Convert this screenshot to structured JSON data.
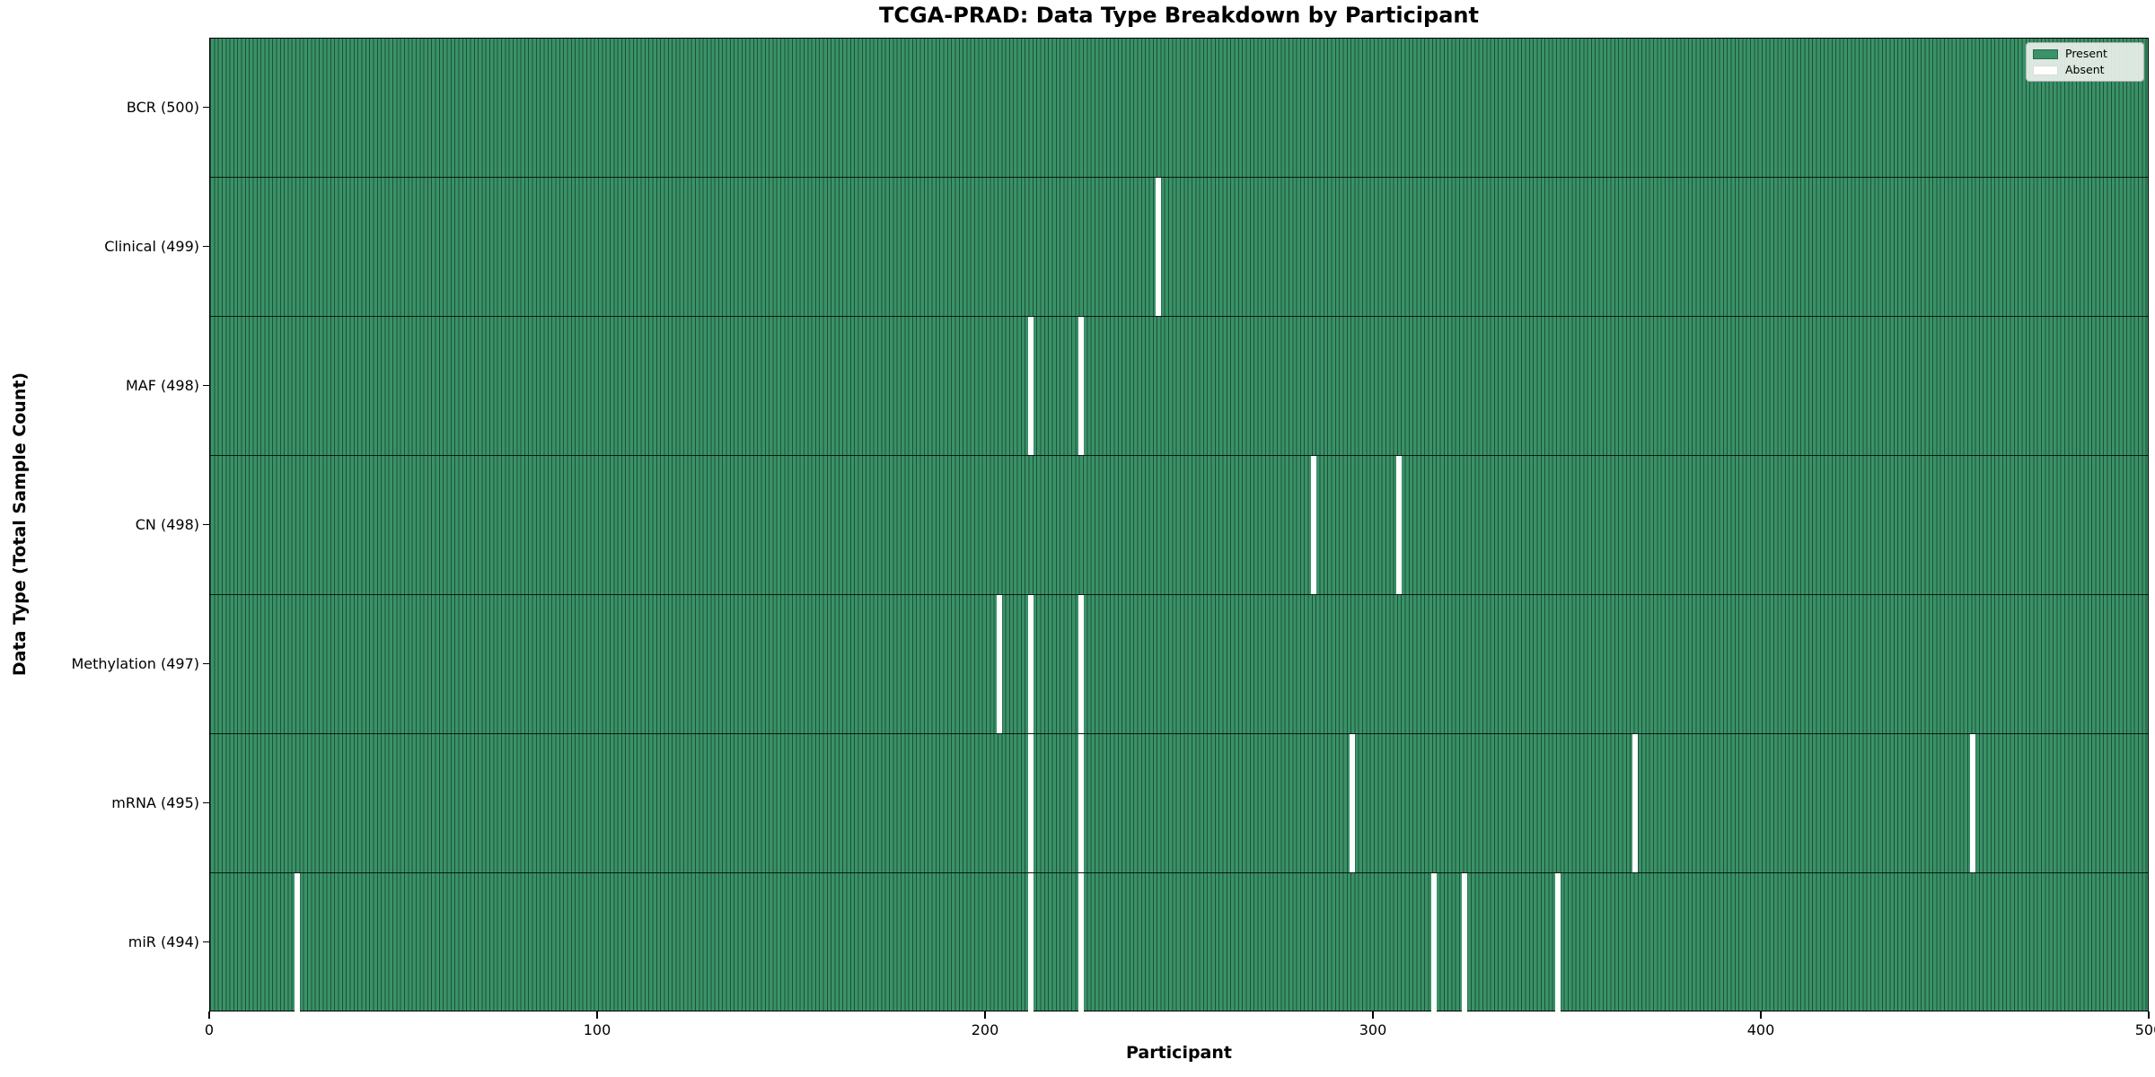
{
  "title": "TCGA-PRAD: Data Type Breakdown by Participant",
  "x_axis": {
    "label": "Participant",
    "ticks": [
      "0",
      "100",
      "200",
      "300",
      "400",
      "500"
    ],
    "range": [
      0,
      500
    ]
  },
  "y_axis": {
    "label": "Data Type (Total Sample Count)"
  },
  "legend": {
    "present_label": "Present",
    "absent_label": "Absent"
  },
  "colors": {
    "present_fill": "#3a9268",
    "cell_edge": "#1e5138",
    "absent": "#ffffff",
    "legend_bg": "#eef3eee6",
    "legend_border": "#b5b5b5"
  },
  "chart_data": {
    "type": "heatmap",
    "title": "TCGA-PRAD: Data Type Breakdown by Participant",
    "xlabel": "Participant",
    "ylabel": "Data Type (Total Sample Count)",
    "x_range": [
      0,
      500
    ],
    "x_ticks": [
      0,
      100,
      200,
      300,
      400,
      500
    ],
    "n_participants": 500,
    "legend": [
      "Present",
      "Absent"
    ],
    "legend_position": "upper right",
    "grid": false,
    "rows": [
      {
        "label": "BCR (500)",
        "data_type": "BCR",
        "total": 500,
        "absent_participants": []
      },
      {
        "label": "Clinical (499)",
        "data_type": "Clinical",
        "total": 499,
        "absent_participants": [
          244
        ]
      },
      {
        "label": "MAF (498)",
        "data_type": "MAF",
        "total": 498,
        "absent_participants": [
          211,
          224
        ]
      },
      {
        "label": "CN (498)",
        "data_type": "CN",
        "total": 498,
        "absent_participants": [
          284,
          306
        ]
      },
      {
        "label": "Methylation (497)",
        "data_type": "Methylation",
        "total": 497,
        "absent_participants": [
          203,
          211,
          224
        ]
      },
      {
        "label": "mRNA (495)",
        "data_type": "mRNA",
        "total": 495,
        "absent_participants": [
          211,
          224,
          294,
          367,
          454
        ]
      },
      {
        "label": "miR (494)",
        "data_type": "miR",
        "total": 494,
        "absent_participants": [
          22,
          211,
          224,
          315,
          323,
          347
        ]
      }
    ]
  }
}
